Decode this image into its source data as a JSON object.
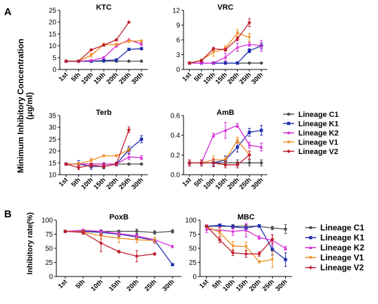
{
  "figure": {
    "panel_labels": [
      "A",
      "B"
    ],
    "ylabel_a": "Minimum Inhibitory Concentration",
    "ylabel_a_unit": "(μg/ml)",
    "ylabel_b": "Inhibitory rate(%)"
  },
  "colors": {
    "Lineage C1": "#4d4d4d",
    "Lineage K1": "#1f2fb0",
    "Lineage K2": "#d62ad6",
    "Lineage V1": "#f08c1e",
    "Lineage V2": "#c01d2e"
  },
  "legends": {
    "a": [
      "Lineage C1",
      "Lineage K1",
      "Lineage K2",
      "Lineage V1",
      "Lineage V2"
    ],
    "b": [
      "Lineage C1",
      "Lineage K1",
      "Lineage K2",
      "Lineage V1",
      "Lineage V2"
    ]
  },
  "chart_data": [
    {
      "type": "line",
      "title": "KTC",
      "x": [
        "1st",
        "5th",
        "10th",
        "15th",
        "20th",
        "25th",
        "30th"
      ],
      "ylim": [
        0,
        25
      ],
      "yticks": [
        0,
        5,
        10,
        15,
        20,
        25
      ],
      "series": [
        {
          "name": "Lineage C1",
          "values": [
            3.5,
            3.5,
            3.5,
            3.5,
            3.5,
            3.5,
            3.5
          ],
          "err": [
            0,
            0,
            0,
            0,
            0,
            0,
            0
          ]
        },
        {
          "name": "Lineage K1",
          "values": [
            3.5,
            3.5,
            3.5,
            3.8,
            4,
            8.5,
            8.8
          ],
          "err": [
            0,
            0,
            0,
            0.3,
            0.3,
            0.4,
            0.3
          ]
        },
        {
          "name": "Lineage K2",
          "values": [
            3.5,
            3.5,
            3.8,
            5,
            10,
            12.5,
            10.7
          ],
          "err": [
            0,
            0,
            0.3,
            0.4,
            0.5,
            0.5,
            0.5
          ]
        },
        {
          "name": "Lineage V1",
          "values": [
            3.5,
            3.5,
            6,
            10.5,
            10.5,
            12,
            12
          ],
          "err": [
            0,
            0,
            0.8,
            0.6,
            0.5,
            0.5,
            0.5
          ]
        },
        {
          "name": "Lineage V2",
          "values": [
            3.5,
            3.5,
            8.3,
            10.3,
            12.5,
            20,
            null
          ],
          "err": [
            0,
            0,
            0.3,
            0.4,
            0.4,
            0,
            0
          ]
        }
      ]
    },
    {
      "type": "line",
      "title": "VRC",
      "x": [
        "1st",
        "5th",
        "10th",
        "15th",
        "20th",
        "25th",
        "30th"
      ],
      "ylim": [
        0,
        12
      ],
      "yticks": [
        0,
        3,
        6,
        9,
        12
      ],
      "series": [
        {
          "name": "Lineage C1",
          "values": [
            1.3,
            1.3,
            1.3,
            1.3,
            1.3,
            1.3,
            1.3
          ],
          "err": [
            0.1,
            0.1,
            0.1,
            0.1,
            0.1,
            0.1,
            0.1
          ]
        },
        {
          "name": "Lineage K1",
          "values": [
            1.3,
            1.3,
            1.3,
            1.3,
            1.3,
            3.8,
            4.8
          ],
          "err": [
            0.1,
            0.1,
            0.1,
            0.1,
            0.1,
            0.4,
            0.6
          ]
        },
        {
          "name": "Lineage K2",
          "values": [
            1.3,
            1.3,
            1.3,
            2.5,
            4.5,
            5.1,
            4.8
          ],
          "err": [
            0.1,
            0.1,
            0.1,
            0.8,
            0.8,
            0.4,
            1.1
          ]
        },
        {
          "name": "Lineage V1",
          "values": [
            1.3,
            1.9,
            3.5,
            4.3,
            7.4,
            6.5,
            null
          ],
          "err": [
            0.1,
            0.2,
            0.8,
            0.5,
            0.7,
            0.8,
            0
          ]
        },
        {
          "name": "Lineage V2",
          "values": [
            1.3,
            1.8,
            4.2,
            4,
            6.2,
            9.5,
            null
          ],
          "err": [
            0.1,
            0.2,
            0.3,
            0.3,
            0.4,
            0.8,
            0
          ]
        }
      ]
    },
    {
      "type": "line",
      "title": "Terb",
      "x": [
        "1st",
        "5th",
        "10th",
        "15th",
        "20th",
        "25th",
        "30th"
      ],
      "ylim": [
        10,
        35
      ],
      "yticks": [
        10,
        15,
        20,
        25,
        30,
        35
      ],
      "series": [
        {
          "name": "Lineage C1",
          "values": [
            14.5,
            14.5,
            14.5,
            14.5,
            14.5,
            14.5,
            14.5
          ],
          "err": [
            0.4,
            0.4,
            0.4,
            0.4,
            0.4,
            0.4,
            0.4
          ]
        },
        {
          "name": "Lineage K1",
          "values": [
            14.5,
            14.5,
            13.5,
            13.5,
            14.5,
            20.5,
            25
          ],
          "err": [
            0.5,
            1.5,
            1.2,
            1,
            0.8,
            1.5,
            1.5
          ]
        },
        {
          "name": "Lineage K2",
          "values": [
            14.5,
            14.5,
            14.5,
            14.5,
            14.5,
            17.5,
            17.2
          ],
          "err": [
            0.4,
            0.6,
            0.6,
            0.6,
            0.6,
            1.2,
            0.8
          ]
        },
        {
          "name": "Lineage V1",
          "values": [
            14.5,
            14.5,
            16,
            18,
            18,
            20.5,
            null
          ],
          "err": [
            0.4,
            0.6,
            1,
            0.3,
            0.3,
            0.8,
            0
          ]
        },
        {
          "name": "Lineage V2",
          "values": [
            14.5,
            13,
            14,
            13.5,
            14.5,
            29,
            null
          ],
          "err": [
            0.4,
            0.8,
            0.8,
            0.8,
            0.6,
            1.2,
            0
          ]
        }
      ]
    },
    {
      "type": "line",
      "title": "AmB",
      "x": [
        "1st",
        "5th",
        "10th",
        "15th",
        "20th",
        "25th",
        "30th"
      ],
      "ylim": [
        0,
        0.6
      ],
      "yticks": [
        0,
        0.2,
        0.4,
        0.6
      ],
      "ytick_labels": [
        "0.0",
        "0.2",
        "0.4",
        "0.6"
      ],
      "series": [
        {
          "name": "Lineage C1",
          "values": [
            0.12,
            0.12,
            0.12,
            0.12,
            0.12,
            0.12,
            0.12
          ],
          "err": [
            0.03,
            0.03,
            0.03,
            0.03,
            0.03,
            0.03,
            0.03
          ]
        },
        {
          "name": "Lineage K1",
          "values": [
            0.12,
            0.12,
            0.12,
            0.15,
            0.28,
            0.43,
            0.45
          ],
          "err": [
            0.03,
            0.03,
            0.03,
            0.04,
            0.05,
            0.04,
            0.05
          ]
        },
        {
          "name": "Lineage K2",
          "values": [
            0.12,
            0.12,
            0.4,
            0.45,
            0.5,
            0.3,
            0.28
          ],
          "err": [
            0.03,
            0.03,
            0.02,
            0.08,
            0.02,
            0.03,
            0.04
          ]
        },
        {
          "name": "Lineage V1",
          "values": [
            0.12,
            0.12,
            0.15,
            0.15,
            0.35,
            0.2,
            null
          ],
          "err": [
            0.03,
            0.03,
            0.04,
            0.03,
            0.03,
            0.04,
            0
          ]
        },
        {
          "name": "Lineage V2",
          "values": [
            0.12,
            0.12,
            0.12,
            0.1,
            0.1,
            0.2,
            null
          ],
          "err": [
            0.03,
            0.03,
            0.04,
            0.03,
            0.03,
            0.04,
            0
          ]
        }
      ]
    },
    {
      "type": "line",
      "title": "PoxB",
      "x": [
        "1st",
        "5th",
        "10th",
        "15th",
        "20th",
        "25th",
        "30th"
      ],
      "ylim": [
        0,
        100
      ],
      "yticks": [
        0,
        25,
        50,
        75,
        100
      ],
      "series": [
        {
          "name": "Lineage C1",
          "values": [
            80,
            80,
            80,
            80,
            80,
            78,
            80
          ],
          "err": [
            2,
            2,
            2,
            2,
            4,
            3,
            3
          ]
        },
        {
          "name": "Lineage K1",
          "values": [
            80,
            80,
            78,
            75,
            70,
            64,
            21
          ],
          "err": [
            2,
            3,
            4,
            4,
            4,
            5,
            1
          ]
        },
        {
          "name": "Lineage K2",
          "values": [
            80,
            82,
            80,
            76,
            72,
            65,
            53
          ],
          "err": [
            2,
            2,
            3,
            3,
            3,
            4,
            2
          ]
        },
        {
          "name": "Lineage V1",
          "values": [
            80,
            79,
            72,
            68,
            65,
            64,
            null
          ],
          "err": [
            2,
            3,
            6,
            8,
            5,
            5,
            0
          ]
        },
        {
          "name": "Lineage V2",
          "values": [
            80,
            78,
            59,
            44,
            36,
            40,
            null
          ],
          "err": [
            2,
            3,
            15,
            2,
            10,
            2,
            0
          ]
        }
      ]
    },
    {
      "type": "line",
      "title": "MBC",
      "x": [
        "1st",
        "5th",
        "10th",
        "15th",
        "20th",
        "25th",
        "30th"
      ],
      "ylim": [
        0,
        100
      ],
      "yticks": [
        0,
        25,
        50,
        75,
        100
      ],
      "series": [
        {
          "name": "Lineage C1",
          "values": [
            89,
            89,
            89,
            89,
            89,
            86,
            84
          ],
          "err": [
            2,
            2,
            3,
            3,
            2,
            3,
            8
          ]
        },
        {
          "name": "Lineage K1",
          "values": [
            89,
            91,
            88,
            86,
            90,
            48,
            30
          ],
          "err": [
            2,
            2,
            3,
            2,
            2,
            10,
            12
          ]
        },
        {
          "name": "Lineage K2",
          "values": [
            84,
            82,
            80,
            82,
            69,
            64,
            50
          ],
          "err": [
            6,
            6,
            7,
            12,
            3,
            10,
            3
          ]
        },
        {
          "name": "Lineage V1",
          "values": [
            89,
            78,
            54,
            53,
            26,
            30,
            null
          ],
          "err": [
            2,
            6,
            8,
            8,
            2,
            14,
            0
          ]
        },
        {
          "name": "Lineage V2",
          "values": [
            89,
            65,
            42,
            40,
            40,
            66,
            null
          ],
          "err": [
            2,
            5,
            5,
            6,
            4,
            8,
            0
          ]
        }
      ]
    }
  ]
}
